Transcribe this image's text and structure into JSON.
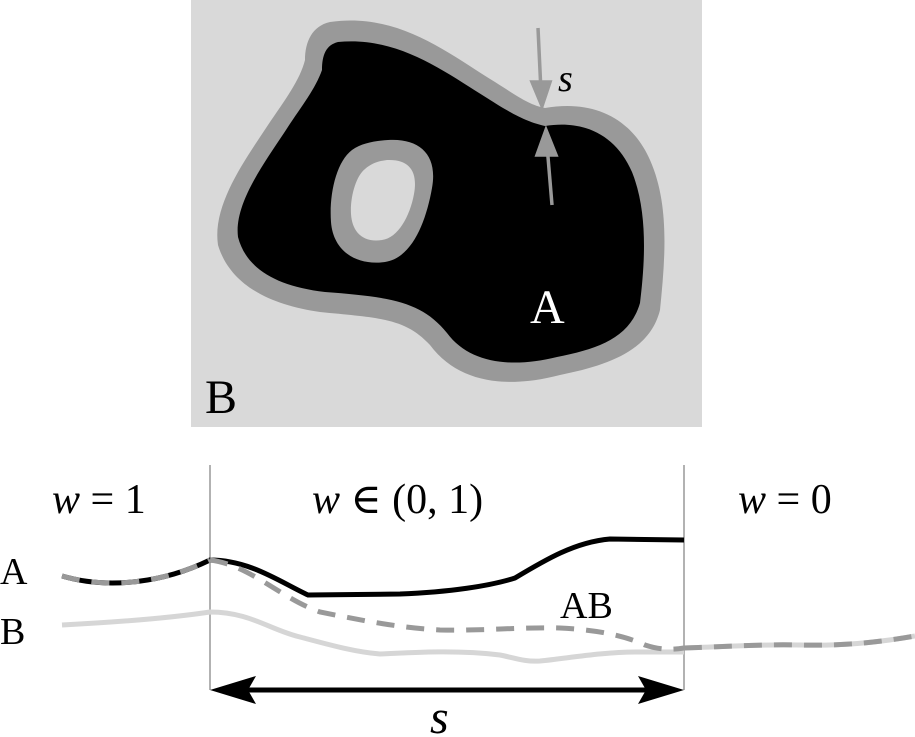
{
  "top_panel": {
    "region_a_label": "A",
    "region_b_label": "B",
    "band_width_label": "s",
    "colors": {
      "background_b": "#d9d9d9",
      "region_a": "#000000",
      "transition_band": "#999999",
      "arrow": "#999999"
    }
  },
  "bottom_panel": {
    "zones": [
      {
        "label_var": "w",
        "label_rest": " = 1"
      },
      {
        "label_var": "w",
        "label_rest": " ∈ (0, 1)"
      },
      {
        "label_var": "w",
        "label_rest": " = 0"
      }
    ],
    "curve_labels": {
      "a": "A",
      "b": "B",
      "ab": "AB"
    },
    "width_label": "s",
    "colors": {
      "curve_a": "#000000",
      "curve_b": "#d6d6d6",
      "curve_ab": "#999999",
      "divider": "#999999"
    }
  }
}
